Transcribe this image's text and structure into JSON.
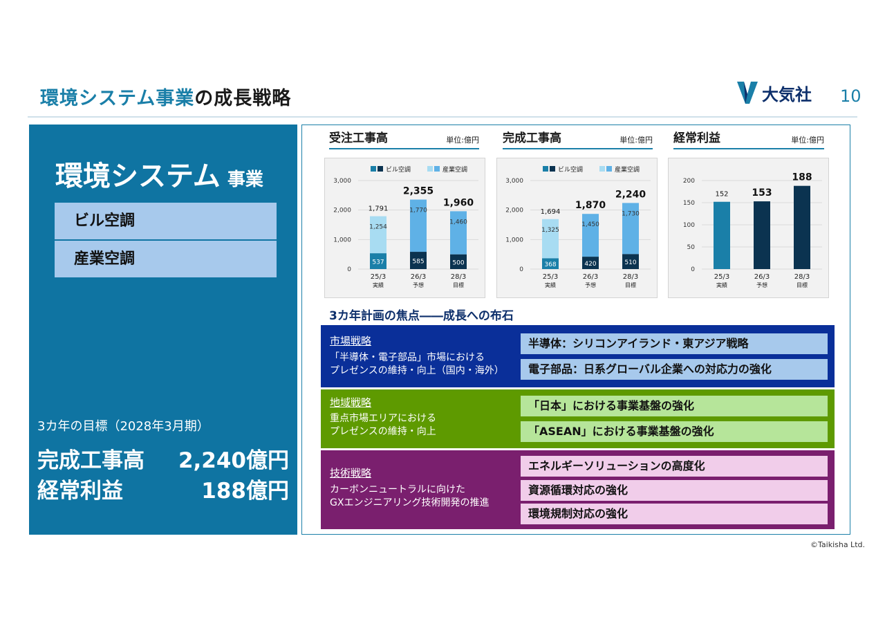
{
  "header": {
    "title_colored": "環境システム事業",
    "title_rest": "の成長戦略",
    "logo_text": "大気社",
    "page_number": "10"
  },
  "segment": {
    "name": "環境システム",
    "suffix": "事業",
    "subsegments": [
      "ビル空調",
      "産業空調"
    ]
  },
  "goals": {
    "heading": "3カ年の目標（2028年3月期）",
    "rows": [
      {
        "label": "完成工事高",
        "value": "2,240億円"
      },
      {
        "label": "経常利益",
        "value": "188億円"
      }
    ]
  },
  "chart_data": [
    {
      "type": "bar",
      "title": "受注工事高",
      "unit": "単位:億円",
      "categories": [
        "25/3",
        "26/3",
        "28/3"
      ],
      "category_notes": [
        "実績",
        "予想",
        "目標"
      ],
      "series": [
        {
          "name": "ビル空調",
          "values": [
            537,
            585,
            500
          ],
          "colors": [
            "#1a7fa8",
            "#0b3350",
            "#0b3350"
          ]
        },
        {
          "name": "産業空調",
          "values": [
            1254,
            1770,
            1460
          ],
          "colors": [
            "#a8dcf2",
            "#5fb1e6",
            "#5fb1e6"
          ]
        }
      ],
      "totals": [
        "1,791",
        "2,355",
        "1,960"
      ],
      "segment_labels": [
        [
          "537",
          "1,254"
        ],
        [
          "585",
          "1,770"
        ],
        [
          "500",
          "1,460"
        ]
      ],
      "y_ticks": [
        "0",
        "1,000",
        "2,000",
        "3,000"
      ],
      "ylim": [
        0,
        3000
      ],
      "legend": "top"
    },
    {
      "type": "bar",
      "title": "完成工事高",
      "unit": "単位:億円",
      "categories": [
        "25/3",
        "26/3",
        "28/3"
      ],
      "category_notes": [
        "実績",
        "予想",
        "目標"
      ],
      "series": [
        {
          "name": "ビル空調",
          "values": [
            368,
            420,
            510
          ],
          "colors": [
            "#1a7fa8",
            "#0b3350",
            "#0b3350"
          ]
        },
        {
          "name": "産業空調",
          "values": [
            1325,
            1450,
            1730
          ],
          "colors": [
            "#a8dcf2",
            "#5fb1e6",
            "#5fb1e6"
          ]
        }
      ],
      "totals": [
        "1,694",
        "1,870",
        "2,240"
      ],
      "segment_labels": [
        [
          "368",
          "1,325"
        ],
        [
          "420",
          "1,450"
        ],
        [
          "510",
          "1,730"
        ]
      ],
      "y_ticks": [
        "0",
        "1,000",
        "2,000",
        "3,000"
      ],
      "ylim": [
        0,
        3000
      ],
      "legend": "top"
    },
    {
      "type": "bar",
      "title": "経常利益",
      "unit": "単位:億円",
      "categories": [
        "25/3",
        "26/3",
        "28/3"
      ],
      "category_notes": [
        "実績",
        "予想",
        "目標"
      ],
      "series": [
        {
          "values": [
            152,
            153,
            188
          ],
          "colors": [
            "#1a7fa8",
            "#0b3350",
            "#0b3350"
          ]
        }
      ],
      "totals": [
        "152",
        "153",
        "188"
      ],
      "y_ticks": [
        "0",
        "50",
        "100",
        "150",
        "200"
      ],
      "ylim": [
        0,
        200
      ]
    }
  ],
  "focus": {
    "title": "3カ年計画の焦点――成長への布石",
    "strategies": [
      {
        "name": "市場戦略",
        "desc": [
          "「半導体・電子部品」市場における",
          "プレゼンスの維持・向上（国内・海外）"
        ],
        "bg": "#0a2f99",
        "item_bg": "#a7c9ec",
        "items": [
          "半導体：シリコンアイランド・東アジア戦略",
          "電子部品：日系グローバル企業への対応力の強化"
        ]
      },
      {
        "name": "地域戦略",
        "desc": [
          "重点市場エリアにおける",
          "プレゼンスの維持・向上"
        ],
        "bg": "#5e9a00",
        "item_bg": "#b6e59a",
        "items": [
          "「日本」における事業基盤の強化",
          "「ASEAN」における事業基盤の強化"
        ]
      },
      {
        "name": "技術戦略",
        "desc": [
          "カーボンニュートラルに向けた",
          "GXエンジニアリング技術開発の推進"
        ],
        "bg": "#7a1f6e",
        "item_bg": "#f1cdea",
        "items": [
          "エネルギーソリューションの高度化",
          "資源循環対応の強化",
          "環境規制対応の強化"
        ]
      }
    ]
  },
  "copyright": "©Taikisha Ltd."
}
